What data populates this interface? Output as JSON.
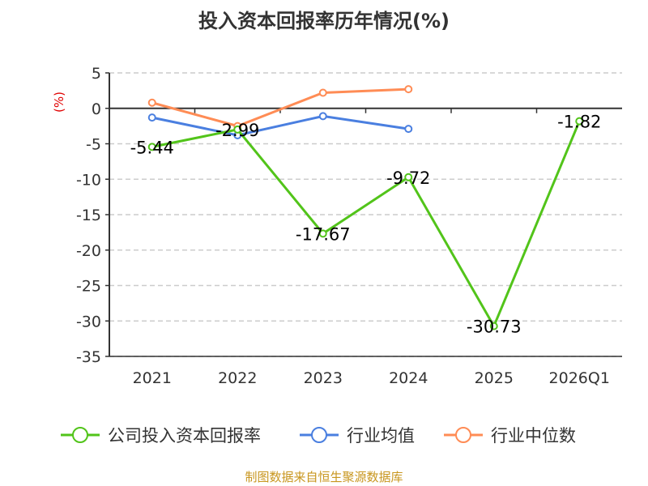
{
  "chart_data": {
    "type": "line",
    "title": "投入资本回报率历年情况(%)",
    "ylabel": "(%)",
    "xlabel": "",
    "categories": [
      "2021",
      "2022",
      "2023",
      "2024",
      "2025",
      "2026Q1"
    ],
    "ylim": [
      -35,
      5
    ],
    "yticks": [
      5,
      0,
      -5,
      -10,
      -15,
      -20,
      -25,
      -30,
      -35
    ],
    "grid": true,
    "legend_position": "bottom",
    "series": [
      {
        "name": "公司投入资本回报率",
        "color": "#52c41a",
        "values": [
          -5.44,
          -2.99,
          -17.67,
          -9.72,
          -30.73,
          -1.82
        ],
        "labels": [
          "-5.44",
          "-2.99",
          "-17.67",
          "-9.72",
          "-30.73",
          "-1.82"
        ]
      },
      {
        "name": "行业均值",
        "color": "#4a7fe0",
        "values": [
          -1.3,
          -3.8,
          -1.1,
          -2.9,
          null,
          null
        ]
      },
      {
        "name": "行业中位数",
        "color": "#ff8c55",
        "values": [
          0.8,
          -2.5,
          2.2,
          2.7,
          null,
          null
        ]
      }
    ]
  },
  "source": "制图数据来自恒生聚源数据库"
}
